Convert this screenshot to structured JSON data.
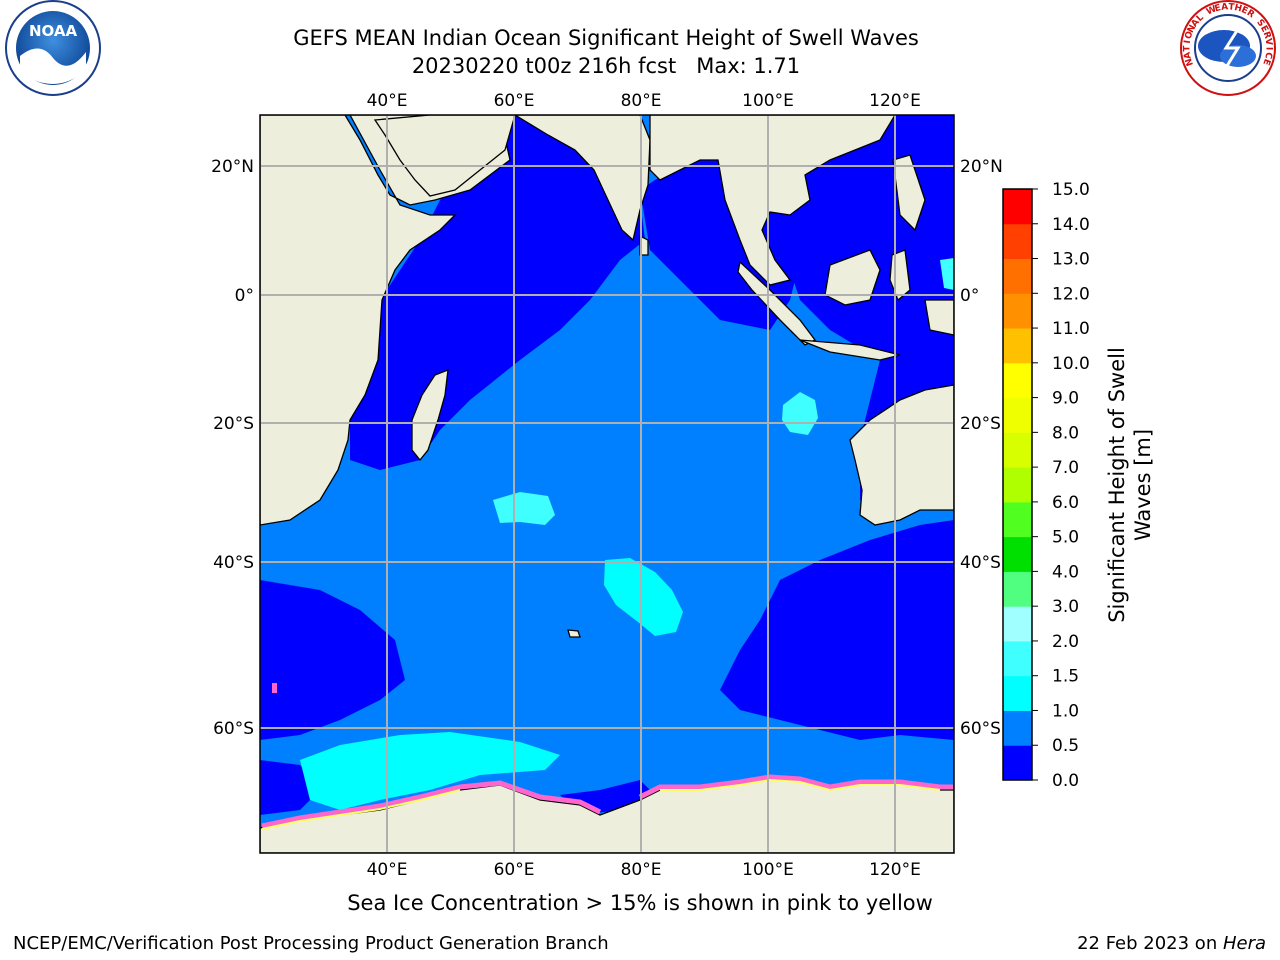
{
  "header": {
    "title_line1": "GEFS MEAN Indian Ocean Significant Height of Swell Waves",
    "title_line2": "20230220 t00z 216h fcst   Max: 1.71"
  },
  "map": {
    "lon_labels": [
      "40°E",
      "60°E",
      "80°E",
      "100°E",
      "120°E"
    ],
    "lon_values": [
      40,
      60,
      80,
      100,
      120
    ],
    "lat_labels": [
      "20°N",
      "0°",
      "20°S",
      "40°S",
      "60°S"
    ],
    "lat_values": [
      20,
      0,
      -20,
      -40,
      -60
    ],
    "ocean_colors": {
      "low": "#0000ff",
      "mid": "#0080ff",
      "high": "#00ffff",
      "land": "#eeeedd"
    }
  },
  "colorbar": {
    "title": "Significant Height of Swell Waves [m]",
    "title_line1": "Significant Height of Swell",
    "title_line2": "Waves [m]",
    "tick_labels": [
      "0.0",
      "0.5",
      "1.0",
      "1.5",
      "2.0",
      "3.0",
      "4.0",
      "5.0",
      "6.0",
      "7.0",
      "8.0",
      "9.0",
      "10.0",
      "11.0",
      "12.0",
      "13.0",
      "14.0",
      "15.0"
    ],
    "bins": [
      {
        "from": 0.0,
        "to": 0.5,
        "color": "#0000ff"
      },
      {
        "from": 0.5,
        "to": 1.0,
        "color": "#0080ff"
      },
      {
        "from": 1.0,
        "to": 1.5,
        "color": "#00ffff"
      },
      {
        "from": 1.5,
        "to": 2.0,
        "color": "#40ffff"
      },
      {
        "from": 2.0,
        "to": 3.0,
        "color": "#a0ffff"
      },
      {
        "from": 3.0,
        "to": 4.0,
        "color": "#50ff80"
      },
      {
        "from": 4.0,
        "to": 5.0,
        "color": "#00e000"
      },
      {
        "from": 5.0,
        "to": 6.0,
        "color": "#50ff20"
      },
      {
        "from": 6.0,
        "to": 7.0,
        "color": "#b0ff00"
      },
      {
        "from": 7.0,
        "to": 8.0,
        "color": "#d8ff00"
      },
      {
        "from": 8.0,
        "to": 9.0,
        "color": "#f0ff00"
      },
      {
        "from": 9.0,
        "to": 10.0,
        "color": "#ffff00"
      },
      {
        "from": 10.0,
        "to": 11.0,
        "color": "#ffc000"
      },
      {
        "from": 11.0,
        "to": 12.0,
        "color": "#ff9000"
      },
      {
        "from": 12.0,
        "to": 13.0,
        "color": "#ff7000"
      },
      {
        "from": 13.0,
        "to": 14.0,
        "color": "#ff4000"
      },
      {
        "from": 14.0,
        "to": 15.0,
        "color": "#ff0000"
      }
    ]
  },
  "caption": "Sea Ice Concentration > 15% is shown in pink to yellow",
  "footer": {
    "left": "NCEP/EMC/Verification Post Processing Product Generation Branch",
    "right_prefix": "22 Feb 2023 on ",
    "right_host": "Hera"
  },
  "logos": {
    "left_name": "NOAA",
    "right_name": "NATIONAL WEATHER SERVICE"
  }
}
